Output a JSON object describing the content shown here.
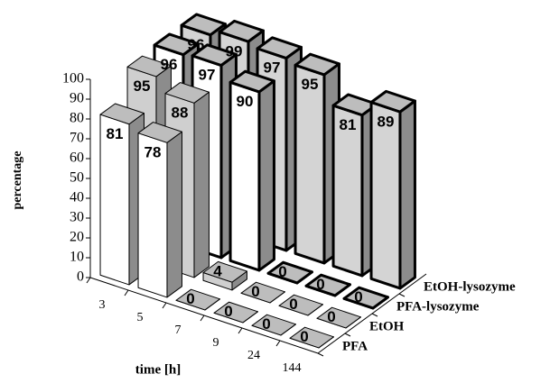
{
  "chart_data": {
    "type": "bar3d",
    "xlabel": "time [h]",
    "ylabel": "percentage",
    "categories": [
      "3",
      "5",
      "7",
      "9",
      "24",
      "144"
    ],
    "series": [
      {
        "name": "PFA",
        "color": "#ffffff",
        "edge_width": 1,
        "values": [
          81,
          78,
          0,
          0,
          0,
          0
        ]
      },
      {
        "name": "EtOH",
        "color": "#cfcfcf",
        "edge_width": 1,
        "values": [
          95,
          88,
          4,
          0,
          0,
          0
        ]
      },
      {
        "name": "PFA-lysozyme",
        "color": "#ffffff",
        "edge_width": 3,
        "values": [
          96,
          97,
          90,
          0,
          0,
          0
        ]
      },
      {
        "name": "EtOH-lysozyme",
        "color": "#d4d4d4",
        "edge_width": 3,
        "values": [
          96,
          99,
          97,
          95,
          81,
          89
        ]
      }
    ],
    "ylim": [
      0,
      100
    ],
    "yticks": [
      0,
      10,
      20,
      30,
      40,
      50,
      60,
      70,
      80,
      90,
      100
    ]
  }
}
